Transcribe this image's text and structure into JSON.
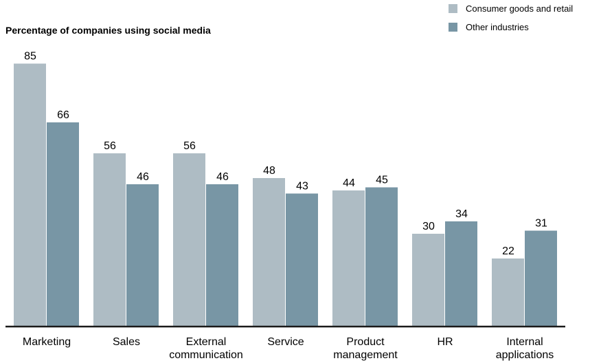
{
  "chart_data": {
    "type": "bar",
    "title": "Percentage of companies using social media",
    "categories": [
      [
        "Marketing"
      ],
      [
        "Sales"
      ],
      [
        "External",
        "communication"
      ],
      [
        "Service"
      ],
      [
        "Product",
        "management"
      ],
      [
        "HR"
      ],
      [
        "Internal",
        "applications"
      ]
    ],
    "series": [
      {
        "name": "Consumer goods and retail",
        "color": "#aebcc4",
        "values": [
          85,
          56,
          56,
          48,
          44,
          30,
          22
        ]
      },
      {
        "name": "Other industries",
        "color": "#7896a5",
        "values": [
          66,
          46,
          46,
          43,
          45,
          34,
          31
        ]
      }
    ],
    "ylim": [
      0,
      100
    ],
    "grid": false,
    "legend_position": "top-right",
    "axis_color": "#1a1a1a"
  }
}
